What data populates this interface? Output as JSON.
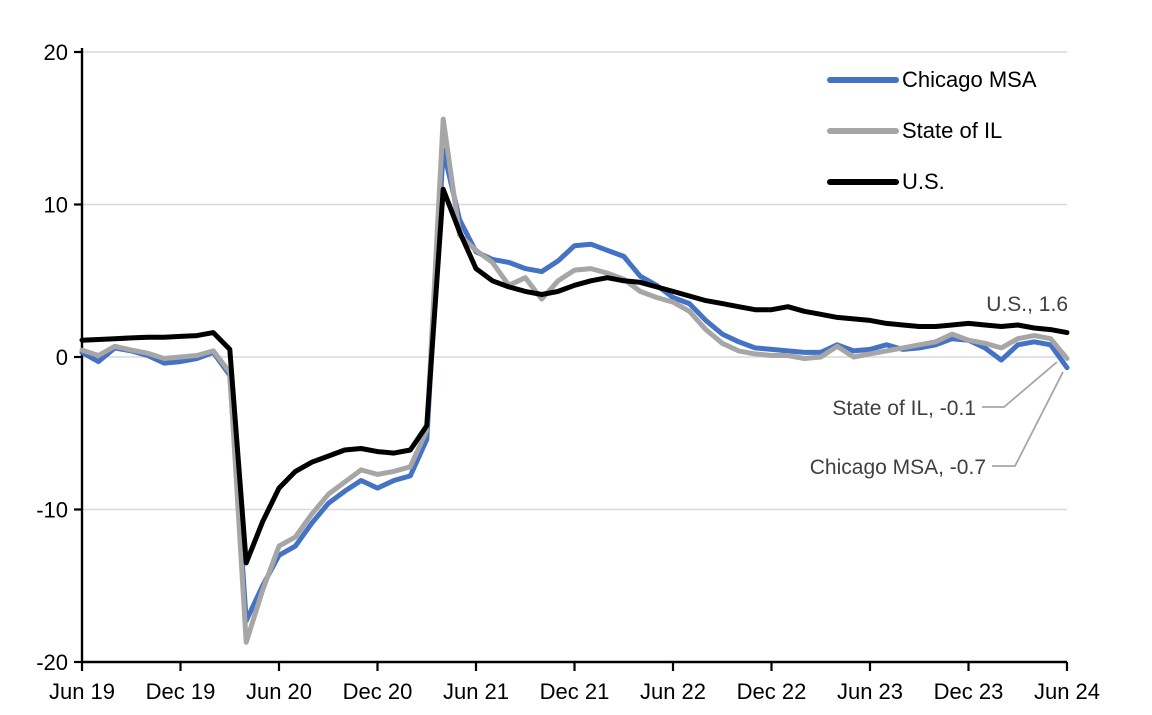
{
  "chart_data": {
    "type": "line",
    "title": "",
    "x_frequency": "monthly",
    "x_range": "Jun 2019 - Jun 2024",
    "x_labels": [
      "Jun 19",
      "Jul 19",
      "Aug 19",
      "Sep 19",
      "Oct 19",
      "Nov 19",
      "Dec 19",
      "Jan 20",
      "Feb 20",
      "Mar 20",
      "Apr 20",
      "May 20",
      "Jun 20",
      "Jul 20",
      "Aug 20",
      "Sep 20",
      "Oct 20",
      "Nov 20",
      "Dec 20",
      "Jan 21",
      "Feb 21",
      "Mar 21",
      "Apr 21",
      "May 21",
      "Jun 21",
      "Jul 21",
      "Aug 21",
      "Sep 21",
      "Oct 21",
      "Nov 21",
      "Dec 21",
      "Jan 22",
      "Feb 22",
      "Mar 22",
      "Apr 22",
      "May 22",
      "Jun 22",
      "Jul 22",
      "Aug 22",
      "Sep 22",
      "Oct 22",
      "Nov 22",
      "Dec 22",
      "Jan 23",
      "Feb 23",
      "Mar 23",
      "Apr 23",
      "May 23",
      "Jun 23",
      "Jul 23",
      "Aug 23",
      "Sep 23",
      "Oct 23",
      "Nov 23",
      "Dec 23",
      "Jan 24",
      "Feb 24",
      "Mar 24",
      "Apr 24",
      "May 24",
      "Jun 24"
    ],
    "x_tick_labels": [
      "Jun 19",
      "Dec 19",
      "Jun 20",
      "Dec 20",
      "Jun 21",
      "Dec 21",
      "Jun 22",
      "Dec 22",
      "Jun 23",
      "Dec 23",
      "Jun 24"
    ],
    "y_tick_labels": [
      "20",
      "10",
      "0",
      "-10",
      "-20"
    ],
    "y_tick_values": [
      20,
      10,
      0,
      -10,
      -20
    ],
    "ylim": [
      -20,
      20
    ],
    "grid": "horizontal",
    "gridline_color": "#D9D9D9",
    "axis_color": "#000000",
    "legend_position": "top-right",
    "series": [
      {
        "name": "Chicago MSA",
        "color": "#4472C4",
        "values": [
          0.3,
          -0.3,
          0.6,
          0.4,
          0.1,
          -0.4,
          -0.3,
          -0.1,
          0.3,
          -1.2,
          -17.3,
          -15.0,
          -13.0,
          -12.4,
          -10.9,
          -9.6,
          -8.8,
          -8.1,
          -8.6,
          -8.1,
          -7.8,
          -5.4,
          13.6,
          9.0,
          6.9,
          6.4,
          6.2,
          5.8,
          5.6,
          6.3,
          7.3,
          7.4,
          7.0,
          6.6,
          5.3,
          4.7,
          3.9,
          3.5,
          2.4,
          1.5,
          1.0,
          0.6,
          0.5,
          0.4,
          0.3,
          0.3,
          0.8,
          0.4,
          0.5,
          0.8,
          0.5,
          0.6,
          0.8,
          1.2,
          1.1,
          0.6,
          -0.2,
          0.8,
          1.0,
          0.8,
          -0.7
        ]
      },
      {
        "name": "State of IL",
        "color": "#A6A6A6",
        "values": [
          0.45,
          0.1,
          0.7,
          0.45,
          0.25,
          -0.1,
          0.0,
          0.1,
          0.4,
          -1.0,
          -18.7,
          -15.3,
          -12.4,
          -11.8,
          -10.3,
          -9.0,
          -8.2,
          -7.4,
          -7.7,
          -7.5,
          -7.2,
          -4.8,
          15.6,
          8.0,
          7.0,
          6.2,
          4.7,
          5.2,
          3.8,
          5.0,
          5.7,
          5.8,
          5.5,
          5.1,
          4.3,
          3.9,
          3.6,
          3.0,
          1.8,
          0.9,
          0.4,
          0.2,
          0.1,
          0.1,
          -0.1,
          0.0,
          0.7,
          0.0,
          0.2,
          0.4,
          0.6,
          0.8,
          1.0,
          1.5,
          1.1,
          0.9,
          0.6,
          1.2,
          1.4,
          1.2,
          -0.1
        ]
      },
      {
        "name": "U.S.",
        "color": "#000000",
        "values": [
          1.1,
          1.15,
          1.2,
          1.25,
          1.3,
          1.3,
          1.35,
          1.4,
          1.6,
          0.5,
          -13.5,
          -10.8,
          -8.6,
          -7.5,
          -6.9,
          -6.5,
          -6.1,
          -6.0,
          -6.2,
          -6.3,
          -6.1,
          -4.5,
          11.0,
          8.2,
          5.8,
          5.0,
          4.6,
          4.3,
          4.1,
          4.3,
          4.7,
          5.0,
          5.2,
          5.0,
          4.9,
          4.6,
          4.3,
          4.0,
          3.7,
          3.5,
          3.3,
          3.1,
          3.1,
          3.3,
          3.0,
          2.8,
          2.6,
          2.5,
          2.4,
          2.2,
          2.1,
          2.0,
          2.0,
          2.1,
          2.2,
          2.1,
          2.0,
          2.1,
          1.9,
          1.8,
          1.6
        ]
      }
    ],
    "end_values": {
      "us": 1.6,
      "state_of_il": -0.1,
      "chicago_msa": -0.7
    },
    "annotations": [
      {
        "text": "U.S., 1.6"
      },
      {
        "text": "State of IL, -0.1"
      },
      {
        "text": "Chicago MSA, -0.7"
      }
    ],
    "annotation_text_color": "#404040",
    "leader_line_color": "#A6A6A6"
  }
}
